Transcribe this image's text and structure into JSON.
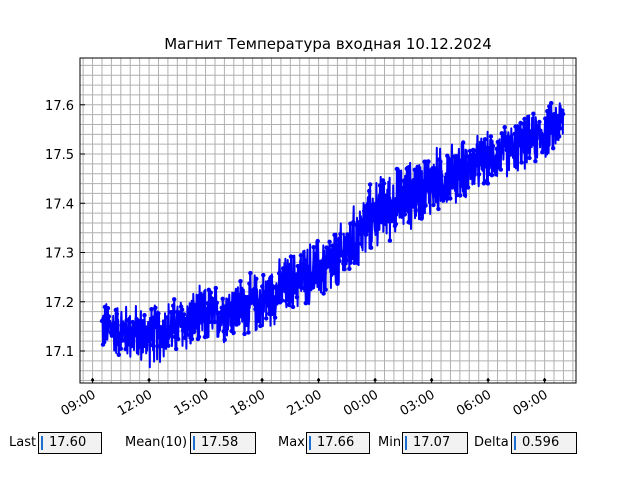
{
  "chart_data": {
    "type": "line",
    "title": "Магнит Температура входная 10.12.2024",
    "xlabel": "",
    "ylabel": "",
    "x_ticks": [
      "09:00",
      "12:00",
      "15:00",
      "18:00",
      "21:00",
      "00:00",
      "03:00",
      "06:00",
      "09:00"
    ],
    "x_range": [
      "2024-12-10 08:20",
      "2024-12-11 10:40"
    ],
    "ylim": [
      17.035,
      17.695
    ],
    "y_ticks": [
      "17.1",
      "17.2",
      "17.3",
      "17.4",
      "17.5",
      "17.6"
    ],
    "grid": true,
    "series_color": "#0000ff",
    "trend": {
      "x": [
        "2024-12-10 09:30",
        "2024-12-10 12:00",
        "2024-12-10 15:00",
        "2024-12-10 18:00",
        "2024-12-10 20:00",
        "2024-12-10 22:00",
        "2024-12-11 00:00",
        "2024-12-11 03:00",
        "2024-12-11 06:00",
        "2024-12-11 09:00",
        "2024-12-11 10:00"
      ],
      "y": [
        17.15,
        17.13,
        17.17,
        17.2,
        17.25,
        17.28,
        17.38,
        17.44,
        17.49,
        17.54,
        17.57
      ],
      "amplitude": [
        0.06,
        0.07,
        0.07,
        0.07,
        0.07,
        0.08,
        0.08,
        0.08,
        0.06,
        0.06,
        0.06
      ]
    }
  },
  "stats": {
    "last": {
      "label": "Last",
      "value": "17.60"
    },
    "mean": {
      "label": "Mean(10)",
      "value": "17.58"
    },
    "max": {
      "label": "Max",
      "value": "17.66"
    },
    "min": {
      "label": "Min",
      "value": "17.07"
    },
    "delta": {
      "label": "Delta",
      "value": "0.596"
    }
  }
}
